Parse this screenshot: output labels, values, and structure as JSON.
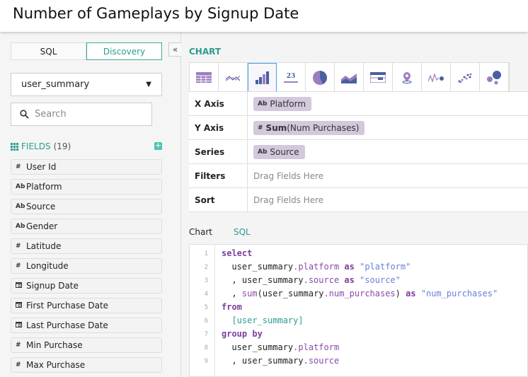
{
  "title": "Number of Gameplays by Signup Date",
  "sidebar": {
    "mode_tabs": [
      {
        "label": "SQL"
      },
      {
        "label": "Discovery"
      }
    ],
    "collapse_label": "«",
    "table_select": "user_summary",
    "search_placeholder": "Search",
    "fields_label": "FIELDS",
    "fields_count": "(19)",
    "fields": [
      {
        "type": "#",
        "label": "User Id"
      },
      {
        "type": "Ab",
        "label": "Platform"
      },
      {
        "type": "Ab",
        "label": "Source"
      },
      {
        "type": "Ab",
        "label": "Gender"
      },
      {
        "type": "#",
        "label": "Latitude"
      },
      {
        "type": "#",
        "label": "Longitude"
      },
      {
        "type": "date",
        "label": "Signup Date"
      },
      {
        "type": "date",
        "label": "First Purchase Date"
      },
      {
        "type": "date",
        "label": "Last Purchase Date"
      },
      {
        "type": "#",
        "label": "Min Purchase"
      },
      {
        "type": "#",
        "label": "Max Purchase"
      }
    ]
  },
  "chart": {
    "label": "CHART",
    "types": [
      "table-icon",
      "line-icon",
      "bar-icon",
      "number-icon",
      "pie-icon",
      "area-icon",
      "pivot-icon",
      "map-pin-icon",
      "sparkline-icon",
      "scatter-icon",
      "bubble-icon"
    ],
    "selected_type": "bar-icon",
    "number_icon_text": "23",
    "rows": [
      {
        "label": "X Axis",
        "pill": {
          "type": "Ab",
          "agg": "",
          "field": "Platform"
        }
      },
      {
        "label": "Y Axis",
        "pill": {
          "type": "#",
          "agg": "Sum",
          "field": "(Num Purchases)"
        }
      },
      {
        "label": "Series",
        "pill": {
          "type": "Ab",
          "agg": "",
          "field": "Source"
        }
      },
      {
        "label": "Filters",
        "placeholder": "Drag Fields Here"
      },
      {
        "label": "Sort",
        "placeholder": "Drag Fields Here"
      }
    ],
    "accent": "#2a9d8f"
  },
  "bottom_tabs": [
    {
      "label": "Chart"
    },
    {
      "label": "SQL"
    }
  ],
  "sql_lines": [
    [
      [
        "kw",
        "select"
      ]
    ],
    [
      [
        "",
        "  user_summary"
      ],
      [
        "pr",
        ".platform"
      ],
      [
        "kw",
        " as "
      ],
      [
        "st",
        "\"platform\""
      ]
    ],
    [
      [
        "",
        "  , user_summary"
      ],
      [
        "pr",
        ".source"
      ],
      [
        "kw",
        " as "
      ],
      [
        "st",
        "\"source\""
      ]
    ],
    [
      [
        "",
        "  , "
      ],
      [
        "pr",
        "sum"
      ],
      [
        "",
        "(user_summary"
      ],
      [
        "pr",
        ".num_purchases"
      ],
      [
        "",
        ")"
      ],
      [
        "kw",
        " as "
      ],
      [
        "st",
        "\"num_purchases\""
      ]
    ],
    [
      [
        "kw",
        "from"
      ]
    ],
    [
      [
        "tb",
        "  [user_summary]"
      ]
    ],
    [
      [
        "kw",
        "group by"
      ]
    ],
    [
      [
        "",
        "  user_summary"
      ],
      [
        "pr",
        ".platform"
      ]
    ],
    [
      [
        "",
        "  , user_summary"
      ],
      [
        "pr",
        ".source"
      ]
    ]
  ]
}
